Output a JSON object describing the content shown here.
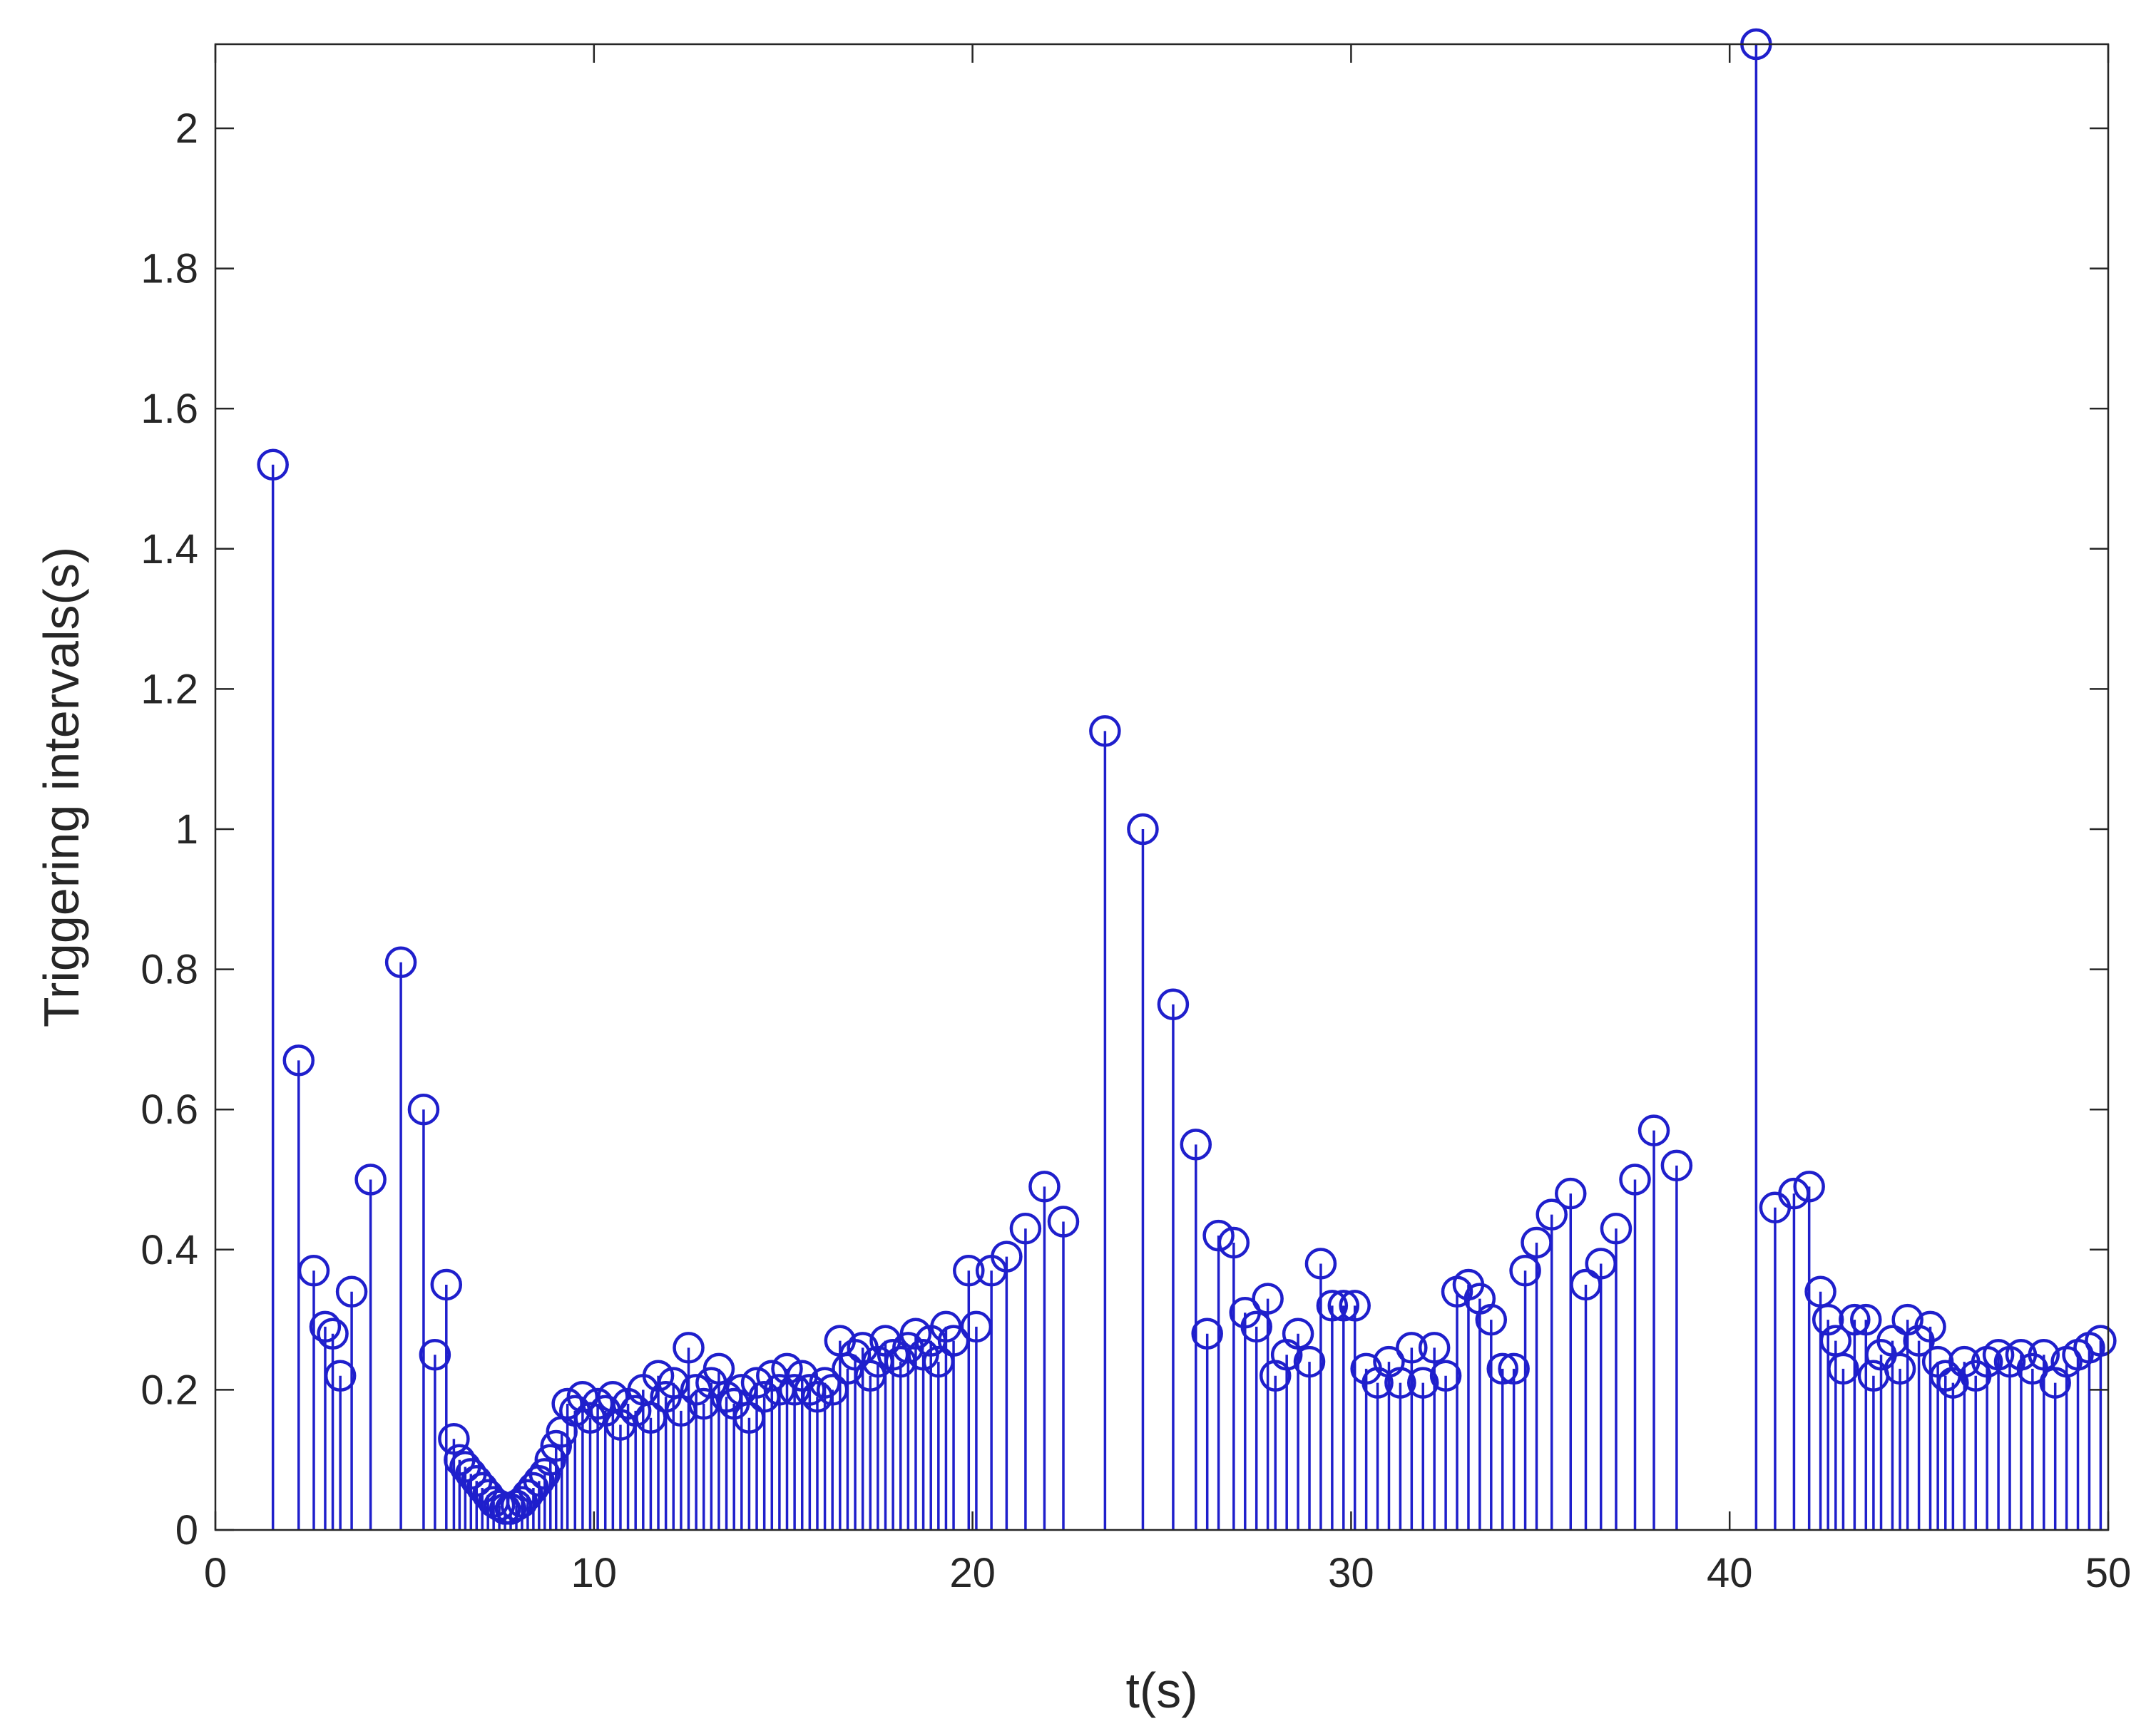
{
  "chart_data": {
    "type": "stem",
    "title": "",
    "xlabel": "t(s)",
    "ylabel": "Triggering intervals(s)",
    "xlim": [
      0,
      50
    ],
    "ylim": [
      0,
      2.12
    ],
    "xticks": [
      0,
      10,
      20,
      30,
      40,
      50
    ],
    "yticks": [
      0,
      0.2,
      0.4,
      0.6,
      0.8,
      1,
      1.2,
      1.4,
      1.6,
      1.8,
      2
    ],
    "xtick_labels": [
      "0",
      "10",
      "20",
      "30",
      "40",
      "50"
    ],
    "ytick_labels": [
      "0",
      "0.2",
      "0.4",
      "0.6",
      "0.8",
      "1",
      "1.2",
      "1.4",
      "1.6",
      "1.8",
      "2"
    ],
    "grid": false,
    "box": true,
    "color": "#1f1fcc",
    "series": [
      {
        "x": [
          1.52,
          2.2,
          2.6,
          2.9,
          3.1,
          3.3,
          3.6,
          4.1,
          4.9,
          5.5,
          5.8,
          6.1,
          6.3,
          6.45,
          6.6,
          6.75,
          6.9,
          7.05,
          7.2,
          7.35,
          7.5,
          7.65,
          7.8,
          7.95,
          8.1,
          8.25,
          8.4,
          8.55,
          8.7,
          8.85,
          9.0,
          9.15,
          9.3,
          9.5,
          9.7,
          9.9,
          10.1,
          10.3,
          10.5,
          10.7,
          10.9,
          11.1,
          11.3,
          11.5,
          11.7,
          11.9,
          12.1,
          12.3,
          12.5,
          12.7,
          12.9,
          13.1,
          13.3,
          13.5,
          13.7,
          13.9,
          14.1,
          14.3,
          14.5,
          14.7,
          14.9,
          15.1,
          15.3,
          15.5,
          15.7,
          15.9,
          16.1,
          16.3,
          16.5,
          16.7,
          16.9,
          17.1,
          17.3,
          17.5,
          17.7,
          17.9,
          18.1,
          18.3,
          18.5,
          18.7,
          18.9,
          19.1,
          19.3,
          19.5,
          19.9,
          20.1,
          20.5,
          20.9,
          21.4,
          21.9,
          22.4,
          23.5,
          24.5,
          25.3,
          25.9,
          26.2,
          26.5,
          26.9,
          27.2,
          27.5,
          27.8,
          28.0,
          28.3,
          28.6,
          28.9,
          29.2,
          29.5,
          29.8,
          30.1,
          30.4,
          30.7,
          31.0,
          31.3,
          31.6,
          31.9,
          32.2,
          32.5,
          32.8,
          33.1,
          33.4,
          33.7,
          34.0,
          34.3,
          34.6,
          34.9,
          35.3,
          35.8,
          36.2,
          36.6,
          37.0,
          37.5,
          38.0,
          38.6,
          40.7,
          41.2,
          41.7,
          42.1,
          42.4,
          42.6,
          42.8,
          43.0,
          43.3,
          43.6,
          43.8,
          44.0,
          44.3,
          44.5,
          44.7,
          45.0,
          45.3,
          45.5,
          45.7,
          45.9,
          46.2,
          46.5,
          46.8,
          47.1,
          47.4,
          47.7,
          48.0,
          48.3,
          48.6,
          48.9,
          49.2,
          49.5,
          49.8
        ],
        "y": [
          1.52,
          0.67,
          0.37,
          0.29,
          0.28,
          0.22,
          0.34,
          0.5,
          0.81,
          0.6,
          0.25,
          0.35,
          0.13,
          0.1,
          0.09,
          0.08,
          0.07,
          0.06,
          0.05,
          0.04,
          0.035,
          0.03,
          0.03,
          0.035,
          0.04,
          0.05,
          0.06,
          0.07,
          0.08,
          0.1,
          0.12,
          0.14,
          0.18,
          0.17,
          0.19,
          0.16,
          0.18,
          0.17,
          0.19,
          0.15,
          0.18,
          0.17,
          0.2,
          0.16,
          0.22,
          0.19,
          0.21,
          0.17,
          0.26,
          0.2,
          0.18,
          0.21,
          0.23,
          0.19,
          0.18,
          0.2,
          0.16,
          0.21,
          0.19,
          0.22,
          0.2,
          0.23,
          0.2,
          0.22,
          0.2,
          0.19,
          0.21,
          0.2,
          0.27,
          0.23,
          0.25,
          0.26,
          0.22,
          0.24,
          0.27,
          0.25,
          0.24,
          0.26,
          0.28,
          0.25,
          0.27,
          0.24,
          0.29,
          0.27,
          0.37,
          0.29,
          0.37,
          0.39,
          0.43,
          0.49,
          0.44,
          1.14,
          1.0,
          0.75,
          0.55,
          0.28,
          0.42,
          0.41,
          0.31,
          0.29,
          0.33,
          0.22,
          0.25,
          0.28,
          0.24,
          0.38,
          0.32,
          0.32,
          0.32,
          0.23,
          0.21,
          0.24,
          0.21,
          0.26,
          0.21,
          0.26,
          0.22,
          0.34,
          0.35,
          0.33,
          0.3,
          0.23,
          0.23,
          0.37,
          0.41,
          0.45,
          0.48,
          0.35,
          0.38,
          0.43,
          0.5,
          0.57,
          0.52,
          2.12,
          0.46,
          0.48,
          0.49,
          0.34,
          0.3,
          0.27,
          0.23,
          0.3,
          0.3,
          0.22,
          0.25,
          0.27,
          0.23,
          0.3,
          0.27,
          0.29,
          0.24,
          0.22,
          0.21,
          0.24,
          0.22,
          0.24,
          0.25,
          0.24,
          0.25,
          0.23,
          0.25,
          0.21,
          0.24,
          0.25,
          0.26,
          0.27
        ]
      }
    ]
  }
}
